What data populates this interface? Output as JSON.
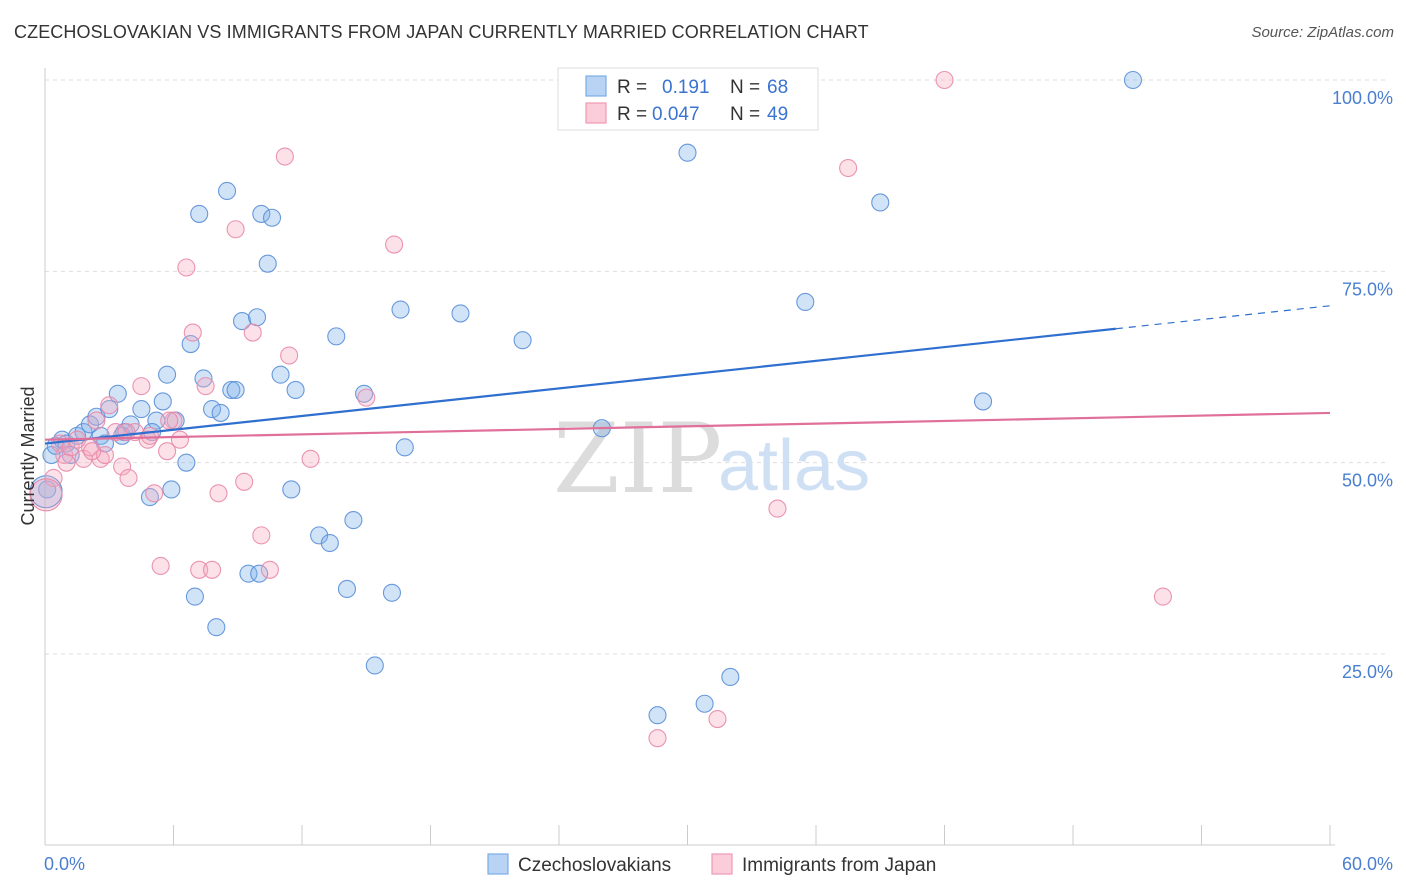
{
  "title": "CZECHOSLOVAKIAN VS IMMIGRANTS FROM JAPAN CURRENTLY MARRIED CORRELATION CHART",
  "source": "Source: ZipAtlas.com",
  "watermark": {
    "zip": "ZIP",
    "atlas": "atlas"
  },
  "chart_data": {
    "type": "scatter",
    "title": "CZECHOSLOVAKIAN VS IMMIGRANTS FROM JAPAN CURRENTLY MARRIED CORRELATION CHART",
    "xlabel": "",
    "ylabel": "Currently Married",
    "xlim": [
      0,
      60
    ],
    "ylim": [
      0,
      100
    ],
    "x_tick_labels": [
      {
        "value": 0,
        "label": "0.0%"
      },
      {
        "value": 60,
        "label": "60.0%"
      }
    ],
    "y_tick_labels": [
      {
        "value": 25,
        "label": "25.0%"
      },
      {
        "value": 50,
        "label": "50.0%"
      },
      {
        "value": 75,
        "label": "75.0%"
      },
      {
        "value": 100,
        "label": "100.0%"
      }
    ],
    "grid": true,
    "legend": {
      "position": "top-center",
      "items": [
        {
          "r_label": "R =",
          "r_value": "0.191",
          "n_label": "N =",
          "n_value": "68"
        },
        {
          "r_label": "R =",
          "r_value": "0.047",
          "n_label": "N =",
          "n_value": "49"
        }
      ]
    },
    "series": [
      {
        "name": "Czechoslovakians",
        "color": "#7aaee8",
        "stroke": "#5a8fd8",
        "trend": {
          "x0": 0,
          "y0": 52.5,
          "x1": 50,
          "y1": 67.5,
          "x_dash_end": 60,
          "y_dash_end": 70.5,
          "color": "#2f6fcf"
        },
        "points": [
          [
            0.3,
            51
          ],
          [
            0.5,
            52.2
          ],
          [
            0.8,
            53
          ],
          [
            1.0,
            52.5
          ],
          [
            1.2,
            51
          ],
          [
            1.5,
            53.5
          ],
          [
            1.8,
            54
          ],
          [
            2.1,
            55
          ],
          [
            2.4,
            56
          ],
          [
            2.6,
            53.5
          ],
          [
            3.0,
            57
          ],
          [
            3.4,
            59
          ],
          [
            3.7,
            54
          ],
          [
            4.0,
            55
          ],
          [
            4.5,
            57
          ],
          [
            4.9,
            45.5
          ],
          [
            5.2,
            55.5
          ],
          [
            5.5,
            58
          ],
          [
            5.7,
            61.5
          ],
          [
            5.9,
            46.5
          ],
          [
            6.1,
            55.5
          ],
          [
            6.6,
            50
          ],
          [
            6.8,
            65.5
          ],
          [
            7.2,
            82.5
          ],
          [
            7.4,
            61
          ],
          [
            7.8,
            57
          ],
          [
            8.2,
            56.5
          ],
          [
            8.5,
            85.5
          ],
          [
            8.7,
            59.5
          ],
          [
            8.9,
            59.5
          ],
          [
            9.2,
            68.5
          ],
          [
            9.9,
            69
          ],
          [
            10.1,
            82.5
          ],
          [
            10.4,
            76
          ],
          [
            10.6,
            82
          ],
          [
            11.0,
            61.5
          ],
          [
            11.5,
            46.5
          ],
          [
            11.7,
            59.5
          ],
          [
            12.8,
            40.5
          ],
          [
            13.3,
            39.5
          ],
          [
            13.6,
            66.5
          ],
          [
            14.1,
            33.5
          ],
          [
            14.4,
            42.5
          ],
          [
            14.9,
            59
          ],
          [
            15.4,
            23.5
          ],
          [
            16.2,
            33
          ],
          [
            16.6,
            70
          ],
          [
            16.8,
            52
          ],
          [
            19.4,
            69.5
          ],
          [
            22.3,
            66
          ],
          [
            24.5,
            100
          ],
          [
            26.0,
            54.5
          ],
          [
            28.6,
            17
          ],
          [
            30.0,
            90.5
          ],
          [
            30.8,
            18.5
          ],
          [
            32.0,
            22
          ],
          [
            35.5,
            71
          ],
          [
            39.0,
            84
          ],
          [
            43.8,
            58
          ],
          [
            50.8,
            100
          ],
          [
            5.0,
            54
          ],
          [
            3.6,
            53.5
          ],
          [
            2.8,
            52.5
          ],
          [
            7.0,
            32.5
          ],
          [
            8.0,
            28.5
          ],
          [
            9.5,
            35.5
          ],
          [
            10.0,
            35.5
          ],
          [
            0.1,
            46.5
          ]
        ],
        "large_point": [
          0.05,
          46.2
        ]
      },
      {
        "name": "Immigrants from Japan",
        "color": "#f5a8c0",
        "stroke": "#e88aa8",
        "trend": {
          "x0": 0,
          "y0": 53,
          "x1": 60,
          "y1": 56.5,
          "color": "#e0709a"
        },
        "points": [
          [
            0.4,
            48
          ],
          [
            0.7,
            52.5
          ],
          [
            0.9,
            51
          ],
          [
            1.2,
            52
          ],
          [
            1.5,
            53
          ],
          [
            1.8,
            50.5
          ],
          [
            2.1,
            52
          ],
          [
            2.4,
            55.5
          ],
          [
            2.6,
            50.5
          ],
          [
            2.8,
            51
          ],
          [
            3.0,
            57.5
          ],
          [
            3.3,
            54
          ],
          [
            3.6,
            49.5
          ],
          [
            3.9,
            48
          ],
          [
            4.2,
            54
          ],
          [
            4.5,
            60
          ],
          [
            4.8,
            53
          ],
          [
            5.1,
            46
          ],
          [
            5.4,
            36.5
          ],
          [
            5.7,
            51.5
          ],
          [
            6.0,
            55.5
          ],
          [
            6.3,
            53
          ],
          [
            6.6,
            75.5
          ],
          [
            6.9,
            67
          ],
          [
            7.2,
            36
          ],
          [
            7.5,
            60
          ],
          [
            7.8,
            36
          ],
          [
            8.1,
            46
          ],
          [
            8.9,
            80.5
          ],
          [
            9.3,
            47.5
          ],
          [
            9.7,
            67
          ],
          [
            10.1,
            40.5
          ],
          [
            10.5,
            36
          ],
          [
            11.2,
            90
          ],
          [
            11.4,
            64
          ],
          [
            12.4,
            50.5
          ],
          [
            15.0,
            58.5
          ],
          [
            16.3,
            78.5
          ],
          [
            28.6,
            14
          ],
          [
            31.4,
            16.5
          ],
          [
            34.2,
            44
          ],
          [
            37.5,
            88.5
          ],
          [
            42.0,
            100
          ],
          [
            52.2,
            32.5
          ],
          [
            4.9,
            53.5
          ],
          [
            5.8,
            55.5
          ],
          [
            3.8,
            54
          ],
          [
            2.2,
            51.5
          ],
          [
            1.0,
            50
          ]
        ],
        "large_point": [
          0.05,
          45.8
        ]
      }
    ]
  },
  "bottom_legend": [
    {
      "label": "Czechoslovakians",
      "color": "#b8d3f3",
      "stroke": "#7aaee8"
    },
    {
      "label": "Immigrants from Japan",
      "color": "#fbcdda",
      "stroke": "#f09ab5"
    }
  ]
}
